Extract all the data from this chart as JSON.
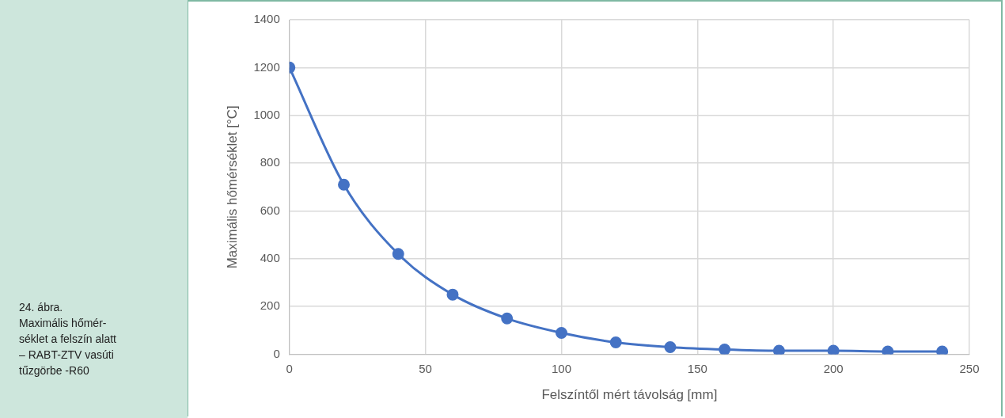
{
  "chart_data": {
    "type": "line",
    "xlabel": "Felszíntől mért távolság [mm]",
    "ylabel": "Maximális hőmérséklet [°C]",
    "annotations": [
      "24. ábra.\nMaximális hőmér-\nséklet a felszín alatt\n– RABT-ZTV vasúti\ntűzgörbe -R60"
    ],
    "x": [
      0,
      20,
      40,
      60,
      80,
      100,
      120,
      140,
      160,
      180,
      200,
      220,
      240
    ],
    "series": [
      {
        "color": "#4472c4",
        "values": [
          1200,
          710,
          420,
          250,
          150,
          90,
          50,
          30,
          20,
          15,
          15,
          12,
          12
        ]
      }
    ],
    "xlim": [
      0,
      250
    ],
    "xticks": [
      0,
      50,
      100,
      150,
      200,
      250
    ],
    "ylim": [
      0,
      1400
    ],
    "yticks": [
      0,
      200,
      400,
      600,
      800,
      1000,
      1200,
      1400
    ],
    "grid": true,
    "legend": false,
    "marker": "circle",
    "line_style": "solid"
  }
}
